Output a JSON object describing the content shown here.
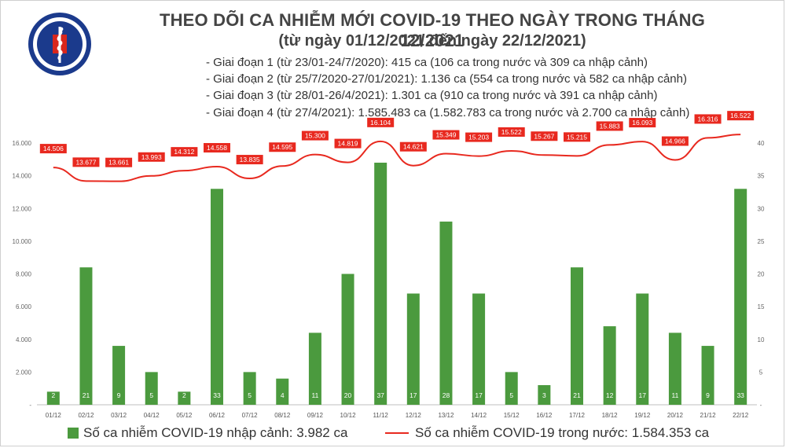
{
  "header": {
    "title": "THEO DÕI CA NHIỄM MỚI COVID-19 THEO NGÀY TRONG THÁNG 12/2021",
    "subtitle": "(từ ngày 01/12/2021 đến ngày 22/12/2021)",
    "logo_top_text": "BỘ Y TẾ",
    "logo_bottom_text": "MINISTRY OF HEALTH",
    "phases": [
      "- Giai đoạn 1 (từ 23/01-24/7/2020): 415 ca (106 ca trong nước và 309 ca nhập cảnh)",
      "- Giai đoạn 2 (từ 25/7/2020-27/01/2021): 1.136 ca (554 ca trong nước và 582 ca nhập cảnh)",
      "- Giai đoạn 3 (từ 28/01-26/4/2021): 1.301 ca (910 ca trong nước và 391 ca nhập cảnh)",
      "- Giai đoạn 4 (từ 27/4/2021): 1.585.483 ca (1.582.783 ca trong nước và 2.700 ca nhập cảnh)"
    ]
  },
  "colors": {
    "bar": "#4b9a3e",
    "line": "#e8291f",
    "logo": "#1b3a8c"
  },
  "chart_data": {
    "type": "bar",
    "categories": [
      "01/12",
      "02/12",
      "03/12",
      "04/12",
      "05/12",
      "06/12",
      "07/12",
      "08/12",
      "09/12",
      "10/12",
      "11/12",
      "12/12",
      "13/12",
      "14/12",
      "15/12",
      "16/12",
      "17/12",
      "18/12",
      "19/12",
      "20/12",
      "21/12",
      "22/12"
    ],
    "series": [
      {
        "name": "Số ca nhiễm COVID-19 nhập cảnh: 3.982 ca",
        "type": "bar",
        "axis": "right",
        "values": [
          2,
          21,
          9,
          5,
          2,
          33,
          5,
          4,
          11,
          20,
          37,
          17,
          28,
          17,
          5,
          3,
          21,
          12,
          17,
          11,
          9,
          33
        ],
        "labels": [
          "2",
          "21",
          "9",
          "5",
          "2",
          "33",
          "5",
          "4",
          "11",
          "20",
          "37",
          "17",
          "28",
          "17",
          "5",
          "3",
          "21",
          "12",
          "17",
          "11",
          "9",
          "33"
        ]
      },
      {
        "name": "Số ca nhiễm COVID-19 trong nước: 1.584.353 ca",
        "type": "line",
        "axis": "left",
        "values": [
          14506,
          13677,
          13661,
          13993,
          14312,
          14558,
          13835,
          14595,
          15300,
          14819,
          16104,
          14621,
          15349,
          15203,
          15522,
          15267,
          15215,
          15883,
          16093,
          14966,
          16316,
          16522
        ],
        "labels": [
          "14.506",
          "13.677",
          "13.661",
          "13.993",
          "14.312",
          "14.558",
          "13.835",
          "14.595",
          "15.300",
          "14.819",
          "16.104",
          "14.621",
          "15.349",
          "15.203",
          "15.522",
          "15.267",
          "15.215",
          "15.883",
          "16.093",
          "14.966",
          "16.316",
          "16.522"
        ]
      }
    ],
    "y_left": {
      "range": [
        0,
        16000
      ],
      "ticks": [
        0,
        2000,
        4000,
        6000,
        8000,
        10000,
        12000,
        14000,
        16000
      ],
      "tick_labels": [
        "-",
        "2.000",
        "4.000",
        "6.000",
        "8.000",
        "10.000",
        "12.000",
        "14.000",
        "16.000"
      ]
    },
    "y_right": {
      "range": [
        0,
        40
      ],
      "ticks": [
        0,
        5,
        10,
        15,
        20,
        25,
        30,
        35,
        40
      ],
      "tick_labels": [
        "-",
        "5",
        "10",
        "15",
        "20",
        "25",
        "30",
        "35",
        "40"
      ]
    },
    "grid": false,
    "legend": "bottom"
  }
}
